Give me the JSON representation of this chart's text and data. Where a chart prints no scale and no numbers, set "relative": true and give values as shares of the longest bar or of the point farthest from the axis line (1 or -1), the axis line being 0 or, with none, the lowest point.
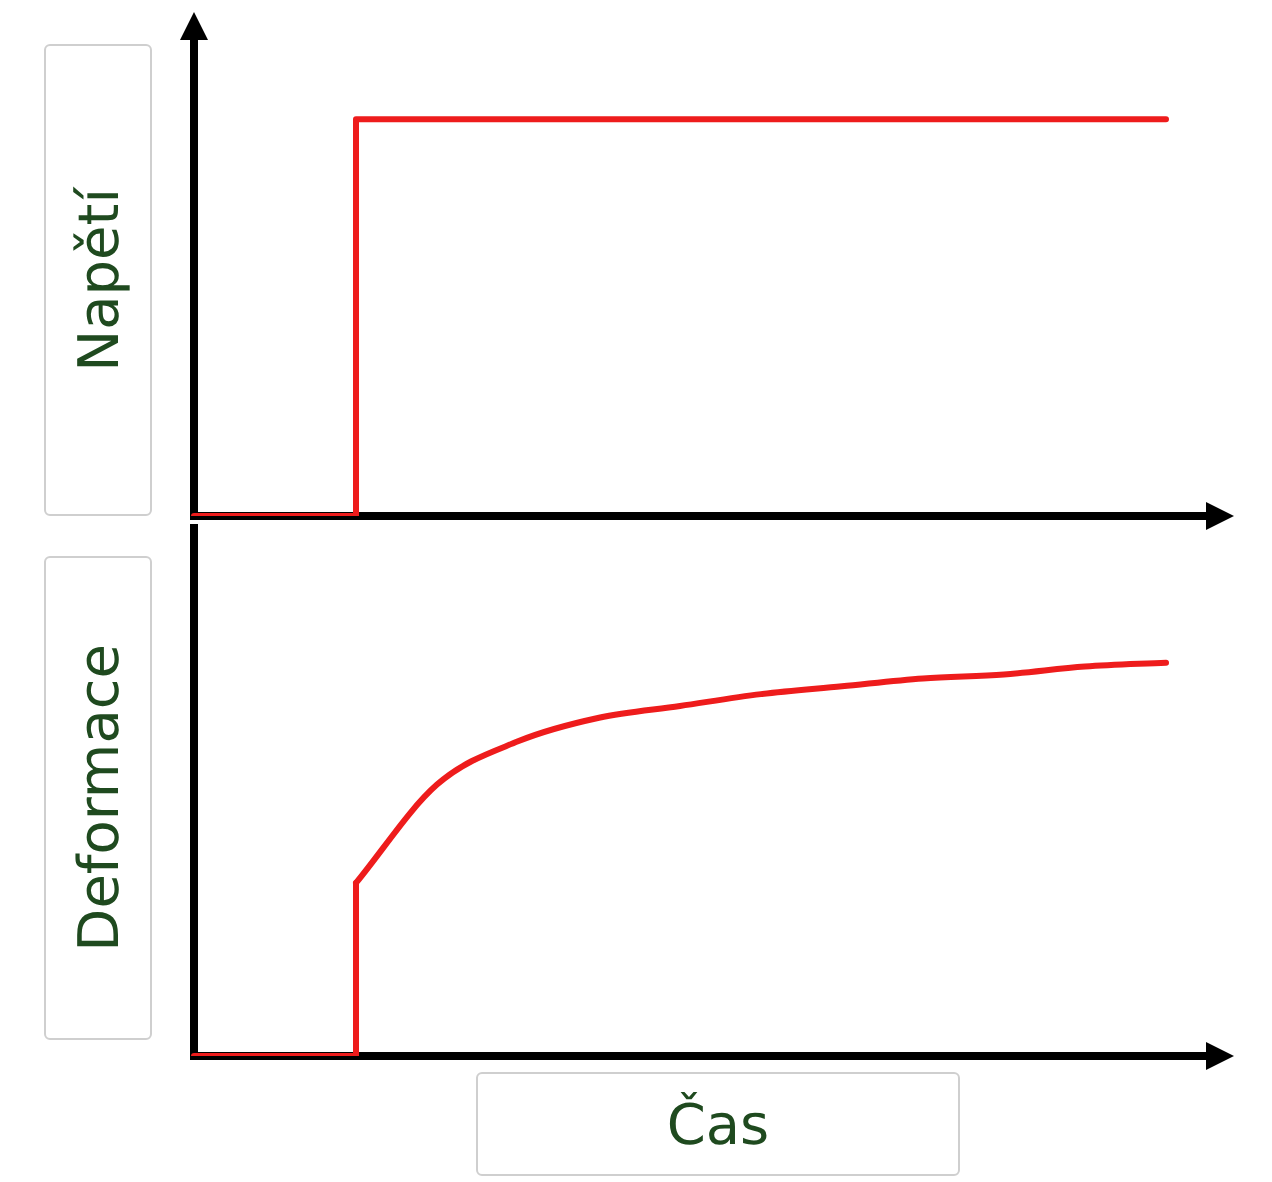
{
  "chart_data": [
    {
      "type": "line",
      "relative": true,
      "ylabel": "Napětí",
      "tick_labels": false,
      "categories": [
        null,
        null,
        null,
        null,
        null,
        null,
        null,
        null,
        null,
        null,
        null,
        null,
        null
      ],
      "series": [
        {
          "type": "step",
          "color": "#ee1c1c",
          "values": [
            0,
            0,
            1,
            1,
            1,
            1,
            1,
            1,
            1,
            1,
            1,
            1,
            1
          ]
        }
      ]
    },
    {
      "type": "line",
      "relative": true,
      "ylabel": "Deformace",
      "xlabel": "Čas",
      "tick_labels": false,
      "categories": [
        null,
        null,
        null,
        null,
        null,
        null,
        null,
        null,
        null,
        null,
        null,
        null,
        null
      ],
      "series": [
        {
          "type": "step",
          "color": "#ee1c1c",
          "values": [
            0,
            0,
            0.44,
            null,
            null,
            null,
            null,
            null,
            null,
            null,
            null,
            null,
            null
          ]
        },
        {
          "type": "line",
          "color": "#ee1c1c",
          "values": [
            null,
            null,
            0.44,
            0.69,
            0.8,
            0.86,
            0.89,
            0.92,
            0.94,
            0.96,
            0.97,
            0.99,
            1
          ]
        }
      ]
    }
  ]
}
